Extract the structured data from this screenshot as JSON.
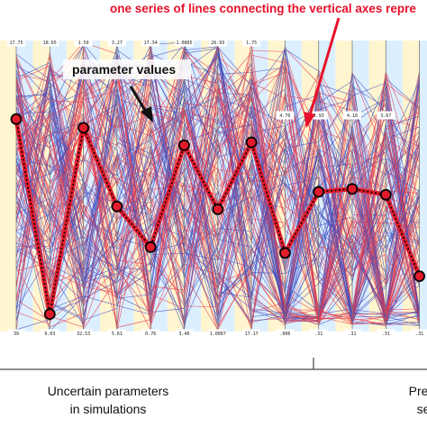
{
  "chart_data": {
    "type": "line",
    "subtype": "parallel-coordinates",
    "axis_count": 13,
    "ylim": [
      0,
      1
    ],
    "axis_top_labels": [
      "17.75",
      "18.65",
      "1.50",
      "3.27",
      "17.34",
      "1.0885",
      "26.93",
      "1.75",
      "",
      "",
      "",
      "",
      ""
    ],
    "axis_mid_labels": [
      "",
      "",
      "",
      "",
      "",
      "",
      "",
      "",
      "4.76",
      "3.93",
      "4.18",
      "3.67",
      ""
    ],
    "axis_bottom_labels": [
      "39",
      "9.03",
      "32.53",
      "5.61",
      "0.76",
      "3.46",
      "1.0087",
      "17.17",
      ".006",
      ".31",
      ".31",
      ".31",
      ".31"
    ],
    "highlight_series": {
      "name": "",
      "values": [
        0.73,
        0.06,
        0.7,
        0.43,
        0.29,
        0.64,
        0.42,
        0.65,
        0.27,
        0.48,
        0.49,
        0.47,
        0.19
      ]
    },
    "annotations": [
      {
        "text": "parameter values",
        "target_axis": 4
      },
      {
        "text": "one series of lines connecting the vertical axes repre",
        "target_axis": 8
      }
    ],
    "group_labels": [
      {
        "line1": "Uncertain parameters",
        "line2": "in simulations",
        "axes": [
          0,
          8
        ]
      },
      {
        "line1": "Predi",
        "line2": "se",
        "axes": [
          9,
          12
        ]
      }
    ],
    "colors": {
      "highlight": "#e21b2c",
      "series_a": "#e43a4a",
      "series_b": "#3f4fc0",
      "stripe_yellow": "#fff5cf",
      "stripe_blue": "#dcefff",
      "annotation_red": "#e8102a"
    }
  }
}
